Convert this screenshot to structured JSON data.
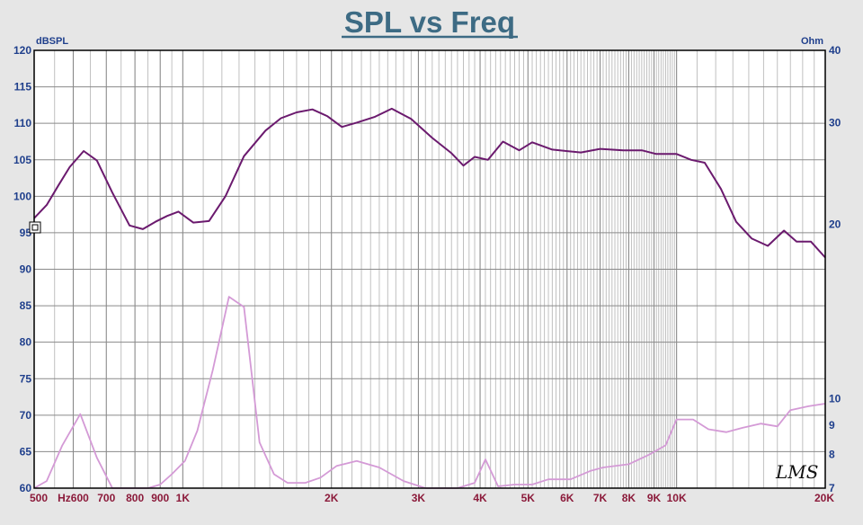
{
  "chart_data": {
    "type": "line",
    "title": "SPL vs Freq",
    "x_scale": "log",
    "xlim": [
      500,
      20000
    ],
    "x_ticks": [
      {
        "value": 500,
        "label": "500"
      },
      {
        "value": 600,
        "label": "Hz600"
      },
      {
        "value": 700,
        "label": "700"
      },
      {
        "value": 800,
        "label": "800"
      },
      {
        "value": 900,
        "label": "900"
      },
      {
        "value": 1000,
        "label": "1K"
      },
      {
        "value": 2000,
        "label": "2K"
      },
      {
        "value": 3000,
        "label": "3K"
      },
      {
        "value": 4000,
        "label": "4K"
      },
      {
        "value": 5000,
        "label": "5K"
      },
      {
        "value": 6000,
        "label": "6K"
      },
      {
        "value": 7000,
        "label": "7K"
      },
      {
        "value": 8000,
        "label": "8K"
      },
      {
        "value": 9000,
        "label": "9K"
      },
      {
        "value": 10000,
        "label": "10K"
      },
      {
        "value": 20000,
        "label": "20K"
      }
    ],
    "left_axis": {
      "unit_label": "dBSPL",
      "ylim": [
        60,
        120
      ],
      "ticks": [
        60,
        65,
        70,
        75,
        80,
        85,
        90,
        95,
        100,
        105,
        110,
        115,
        120
      ]
    },
    "right_axis": {
      "unit_label": "Ohm",
      "scale": "log",
      "ylim": [
        7,
        40
      ],
      "ticks": [
        7,
        8,
        9,
        10,
        20,
        30,
        40
      ]
    },
    "grid": true,
    "series": [
      {
        "axis": "left",
        "color": "#6b1a6e",
        "points": [
          [
            500,
            97
          ],
          [
            530,
            98.8
          ],
          [
            560,
            101.5
          ],
          [
            590,
            104
          ],
          [
            630,
            106.2
          ],
          [
            670,
            104.9
          ],
          [
            720,
            100.5
          ],
          [
            780,
            96
          ],
          [
            830,
            95.5
          ],
          [
            880,
            96.5
          ],
          [
            930,
            97.3
          ],
          [
            980,
            97.9
          ],
          [
            1050,
            96.4
          ],
          [
            1130,
            96.6
          ],
          [
            1220,
            100
          ],
          [
            1330,
            105.5
          ],
          [
            1470,
            109
          ],
          [
            1580,
            110.7
          ],
          [
            1700,
            111.5
          ],
          [
            1830,
            111.9
          ],
          [
            1960,
            111
          ],
          [
            2100,
            109.5
          ],
          [
            2250,
            110.1
          ],
          [
            2450,
            110.9
          ],
          [
            2650,
            112
          ],
          [
            2900,
            110.6
          ],
          [
            3200,
            108
          ],
          [
            3500,
            105.9
          ],
          [
            3700,
            104.2
          ],
          [
            3900,
            105.4
          ],
          [
            4150,
            105
          ],
          [
            4450,
            107.5
          ],
          [
            4800,
            106.3
          ],
          [
            5100,
            107.4
          ],
          [
            5600,
            106.4
          ],
          [
            6400,
            106
          ],
          [
            7000,
            106.5
          ],
          [
            7800,
            106.3
          ],
          [
            8500,
            106.3
          ],
          [
            9100,
            105.8
          ],
          [
            10000,
            105.8
          ],
          [
            10700,
            105
          ],
          [
            11400,
            104.6
          ],
          [
            12300,
            101
          ],
          [
            13200,
            96.5
          ],
          [
            14200,
            94.2
          ],
          [
            15300,
            93.2
          ],
          [
            16500,
            95.3
          ],
          [
            17500,
            93.8
          ],
          [
            18700,
            93.8
          ],
          [
            20000,
            91.6
          ]
        ]
      },
      {
        "axis": "right",
        "color": "#d49ad6",
        "points": [
          [
            500,
            7.0
          ],
          [
            530,
            7.2
          ],
          [
            570,
            8.3
          ],
          [
            620,
            9.4
          ],
          [
            670,
            7.9
          ],
          [
            720,
            7.0
          ],
          [
            780,
            6.9
          ],
          [
            850,
            6.9
          ],
          [
            900,
            7.1
          ],
          [
            950,
            7.4
          ],
          [
            1010,
            7.8
          ],
          [
            1070,
            8.8
          ],
          [
            1150,
            11.2
          ],
          [
            1240,
            15.0
          ],
          [
            1330,
            14.4
          ],
          [
            1430,
            8.4
          ],
          [
            1530,
            7.4
          ],
          [
            1630,
            7.15
          ],
          [
            1770,
            7.15
          ],
          [
            1900,
            7.3
          ],
          [
            2050,
            7.65
          ],
          [
            2250,
            7.8
          ],
          [
            2500,
            7.6
          ],
          [
            2800,
            7.2
          ],
          [
            3100,
            6.9
          ],
          [
            3600,
            6.95
          ],
          [
            3900,
            7.15
          ],
          [
            4100,
            7.85
          ],
          [
            4350,
            7.05
          ],
          [
            4700,
            7.1
          ],
          [
            5100,
            7.1
          ],
          [
            5500,
            7.25
          ],
          [
            6100,
            7.25
          ],
          [
            6700,
            7.5
          ],
          [
            7100,
            7.6
          ],
          [
            8000,
            7.7
          ],
          [
            8800,
            8.0
          ],
          [
            9500,
            8.3
          ],
          [
            10000,
            9.2
          ],
          [
            10800,
            9.2
          ],
          [
            11600,
            8.85
          ],
          [
            12600,
            8.75
          ],
          [
            13600,
            8.9
          ],
          [
            14800,
            9.05
          ],
          [
            16000,
            8.95
          ],
          [
            17000,
            9.55
          ],
          [
            18500,
            9.7
          ],
          [
            20000,
            9.8
          ]
        ]
      }
    ],
    "logo_text": "LMS"
  }
}
